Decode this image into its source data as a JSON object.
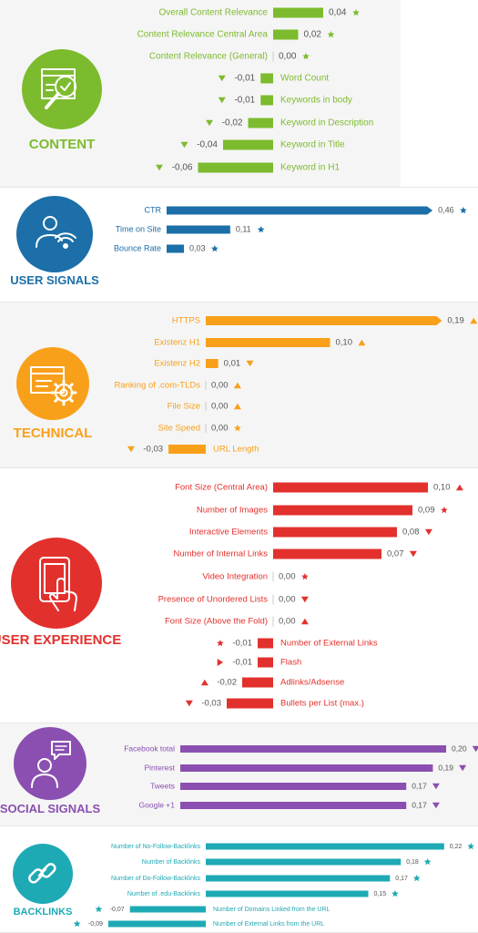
{
  "colors": {
    "content": "#7dbb2e",
    "user_signals": "#1c6fa8",
    "technical": "#f9a01b",
    "user_experience": "#e2312d",
    "social_signals": "#8a4fb0",
    "backlinks": "#1eaab5",
    "panel": "#f5f5f5"
  },
  "chart_data": [
    {
      "type": "bar",
      "section": "content",
      "title": "CONTENT",
      "icon": "magnifier-check-icon",
      "categories": [
        "Overall Content Relevance",
        "Content Relevance Central Area",
        "Content Relevance (General)",
        "Word Count",
        "Keywords in body",
        "Keyword in Description",
        "Keyword in Title",
        "Keyword in H1"
      ],
      "values": [
        0.04,
        0.02,
        0.0,
        -0.01,
        -0.01,
        -0.02,
        -0.04,
        -0.06
      ],
      "value_labels": [
        "0,04",
        "0,02",
        "0,00",
        "-0,01",
        "-0,01",
        "-0,02",
        "-0,04",
        "-0,06"
      ],
      "markers": [
        "star",
        "star",
        "star",
        "down",
        "down",
        "down",
        "down",
        "down"
      ]
    },
    {
      "type": "bar",
      "section": "user_signals",
      "title": "USER SIGNALS",
      "icon": "user-wifi-icon",
      "categories": [
        "CTR",
        "Time on Site",
        "Bounce Rate"
      ],
      "values": [
        0.46,
        0.11,
        0.03
      ],
      "value_labels": [
        "0,46",
        "0,11",
        "0,03"
      ],
      "markers": [
        "star",
        "star",
        "star"
      ]
    },
    {
      "type": "bar",
      "section": "technical",
      "title": "TECHNICAL",
      "icon": "browser-gear-icon",
      "categories": [
        "HTTPS",
        "Existenz H1",
        "Existenz H2",
        "Ranking of .com-TLDs",
        "File Size",
        "Site Speed",
        "URL Length"
      ],
      "values": [
        0.19,
        0.1,
        0.01,
        0.0,
        0.0,
        0.0,
        -0.03
      ],
      "value_labels": [
        "0,19",
        "0,10",
        "0,01",
        "0,00",
        "0,00",
        "0,00",
        "-0,03"
      ],
      "markers": [
        "up",
        "up",
        "down",
        "up",
        "up",
        "star",
        "down"
      ]
    },
    {
      "type": "bar",
      "section": "user_experience",
      "title": "USER EXPERIENCE",
      "icon": "tablet-touch-icon",
      "categories": [
        "Font Size (Central Area)",
        "Number of Images",
        "Interactive Elements",
        "Number of Internal Links",
        "Video Integration",
        "Presence of Unordered Lists",
        "Font Size (Above the Fold)",
        "Number of External Links",
        "Flash",
        "Adlinks/Adsense",
        "Bullets per List (max.)"
      ],
      "values": [
        0.1,
        0.09,
        0.08,
        0.07,
        0.0,
        0.0,
        0.0,
        -0.01,
        -0.01,
        -0.02,
        -0.03
      ],
      "value_labels": [
        "0,10",
        "0,09",
        "0,08",
        "0,07",
        "0,00",
        "0,00",
        "0,00",
        "-0,01",
        "-0,01",
        "-0,02",
        "-0,03"
      ],
      "markers": [
        "up",
        "star",
        "down",
        "down",
        "star",
        "down",
        "up",
        "star",
        "right",
        "up",
        "down"
      ]
    },
    {
      "type": "bar",
      "section": "social_signals",
      "title": "SOCIAL SIGNALS",
      "icon": "person-chat-icon",
      "categories": [
        "Facebook total",
        "Pinterest",
        "Tweets",
        "Google +1"
      ],
      "values": [
        0.2,
        0.19,
        0.17,
        0.17
      ],
      "value_labels": [
        "0,20",
        "0,19",
        "0,17",
        "0,17"
      ],
      "markers": [
        "down",
        "down",
        "down",
        "down"
      ]
    },
    {
      "type": "bar",
      "section": "backlinks",
      "title": "BACKLINKS",
      "icon": "chain-link-icon",
      "categories": [
        "Number of No-Follow-Backlinks",
        "Number of Backlinks",
        "Number of Do-Follow-Backlinks",
        "Number of .edu-Backlinks",
        "Number of Domains Linked from the URL",
        "Number of External Links from the URL"
      ],
      "values": [
        0.22,
        0.18,
        0.17,
        0.15,
        -0.07,
        -0.09
      ],
      "value_labels": [
        "0,22",
        "0,18",
        "0,17",
        "0,15",
        "-0,07",
        "-0,09"
      ],
      "markers": [
        "star",
        "star",
        "star",
        "star",
        "star",
        "star"
      ]
    }
  ]
}
